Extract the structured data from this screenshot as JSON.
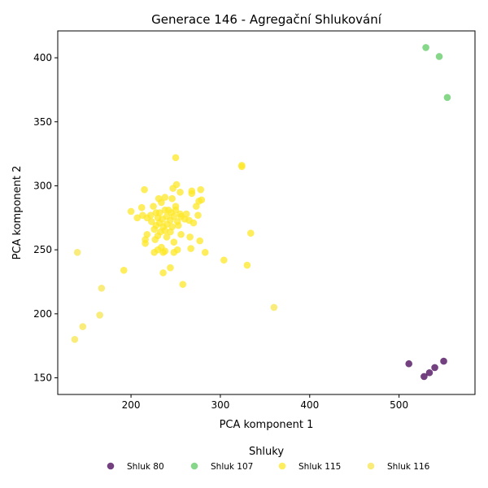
{
  "chart_data": {
    "type": "scatter",
    "title": "Generace 146 - Agregační Shlukování",
    "xlabel": "PCA komponent 1",
    "ylabel": "PCA komponent 2",
    "xlim": [
      118,
      585
    ],
    "ylim": [
      137,
      421
    ],
    "xticks": [
      200,
      300,
      400,
      500
    ],
    "yticks": [
      150,
      200,
      250,
      300,
      350,
      400
    ],
    "grid": false,
    "legend": {
      "title": "Shluky",
      "placement": "bottom-center"
    },
    "series": [
      {
        "name": "Shluk 80",
        "color": "#440154",
        "points": [
          [
            511,
            161
          ],
          [
            528,
            151
          ],
          [
            534,
            154
          ],
          [
            540,
            158
          ],
          [
            550,
            163
          ]
        ]
      },
      {
        "name": "Shluk 107",
        "color": "#5ec962",
        "points": [
          [
            530,
            408
          ],
          [
            545,
            401
          ],
          [
            554,
            369
          ]
        ]
      },
      {
        "name": "Shluk 115",
        "color": "#fde725",
        "points": [
          [
            250,
            322
          ],
          [
            324,
            315
          ],
          [
            324,
            316
          ],
          [
            215,
            297
          ],
          [
            251,
            301
          ],
          [
            247,
            298
          ],
          [
            268,
            296
          ],
          [
            278,
            297
          ],
          [
            255,
            295
          ],
          [
            268,
            294
          ],
          [
            231,
            290
          ],
          [
            238,
            291
          ],
          [
            246,
            290
          ],
          [
            279,
            289
          ],
          [
            276,
            288
          ],
          [
            234,
            287
          ],
          [
            225,
            284
          ],
          [
            212,
            283
          ],
          [
            250,
            284
          ],
          [
            273,
            284
          ],
          [
            242,
            281
          ],
          [
            250,
            281
          ],
          [
            238,
            281
          ],
          [
            228,
            279
          ],
          [
            200,
            280
          ],
          [
            232,
            279
          ],
          [
            245,
            279
          ],
          [
            255,
            278
          ],
          [
            262,
            278
          ],
          [
            222,
            277
          ],
          [
            213,
            277
          ],
          [
            275,
            277
          ],
          [
            218,
            275
          ],
          [
            230,
            275
          ],
          [
            240,
            276
          ],
          [
            248,
            276
          ],
          [
            256,
            276
          ],
          [
            207,
            275
          ],
          [
            235,
            274
          ],
          [
            244,
            273
          ],
          [
            260,
            274
          ],
          [
            265,
            273
          ],
          [
            223,
            272
          ],
          [
            232,
            271
          ],
          [
            252,
            272
          ],
          [
            240,
            270
          ],
          [
            270,
            271
          ],
          [
            228,
            269
          ],
          [
            236,
            268
          ],
          [
            246,
            268
          ],
          [
            253,
            269
          ],
          [
            226,
            266
          ],
          [
            238,
            265
          ],
          [
            233,
            264
          ],
          [
            244,
            264
          ],
          [
            218,
            262
          ],
          [
            230,
            261
          ],
          [
            240,
            260
          ],
          [
            256,
            262
          ],
          [
            266,
            260
          ],
          [
            216,
            258
          ],
          [
            227,
            258
          ],
          [
            248,
            256
          ],
          [
            277,
            257
          ],
          [
            216,
            255
          ],
          [
            234,
            252
          ],
          [
            252,
            250
          ],
          [
            267,
            251
          ],
          [
            226,
            248
          ],
          [
            236,
            248
          ],
          [
            248,
            248
          ],
          [
            283,
            248
          ],
          [
            238,
            249
          ],
          [
            230,
            250
          ],
          [
            304,
            242
          ],
          [
            330,
            238
          ],
          [
            334,
            263
          ],
          [
            244,
            236
          ],
          [
            236,
            232
          ],
          [
            192,
            234
          ],
          [
            258,
            223
          ]
        ]
      },
      {
        "name": "Shluk 116",
        "color": "#f7e64e",
        "points": [
          [
            140,
            248
          ],
          [
            167,
            220
          ],
          [
            165,
            199
          ],
          [
            146,
            190
          ],
          [
            137,
            180
          ],
          [
            360,
            205
          ]
        ]
      }
    ]
  }
}
